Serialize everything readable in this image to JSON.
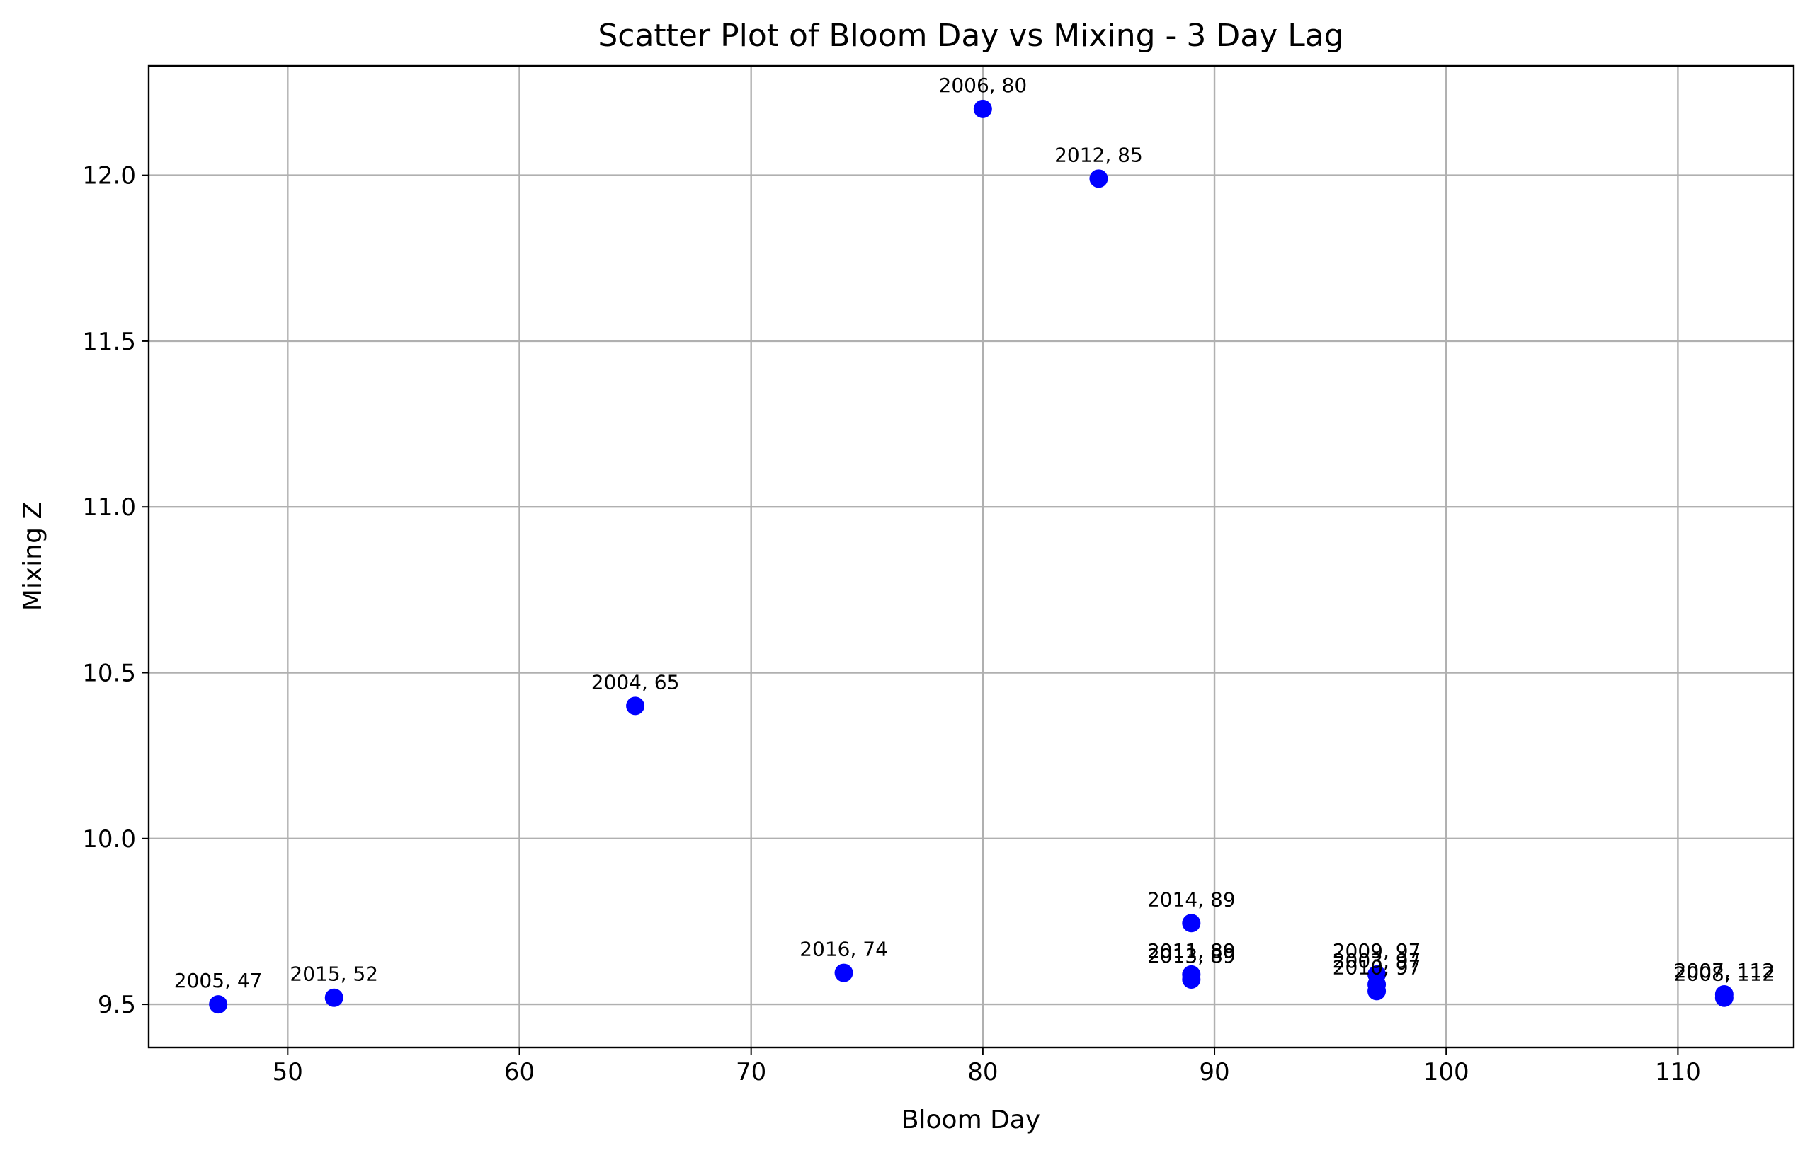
{
  "chart_data": {
    "type": "scatter",
    "title": "Scatter Plot of Bloom Day vs Mixing - 3 Day Lag",
    "xlabel": "Bloom Day",
    "ylabel": "Mixing Z",
    "xlim": [
      44,
      115
    ],
    "ylim": [
      9.37,
      12.33
    ],
    "xticks": [
      50,
      60,
      70,
      80,
      90,
      100,
      110
    ],
    "yticks": [
      9.5,
      10.0,
      10.5,
      11.0,
      11.5,
      12.0
    ],
    "ytick_labels": [
      "9.5",
      "10.0",
      "10.5",
      "11.0",
      "11.5",
      "12.0"
    ],
    "grid": true,
    "marker_color": "#0000ff",
    "points": [
      {
        "label": "2005, 47",
        "x": 47,
        "y": 9.5
      },
      {
        "label": "2015, 52",
        "x": 52,
        "y": 9.52
      },
      {
        "label": "2004, 65",
        "x": 65,
        "y": 10.4
      },
      {
        "label": "2016, 74",
        "x": 74,
        "y": 9.595
      },
      {
        "label": "2006, 80",
        "x": 80,
        "y": 12.2
      },
      {
        "label": "2012, 85",
        "x": 85,
        "y": 11.99
      },
      {
        "label": "2014, 89",
        "x": 89,
        "y": 9.745
      },
      {
        "label": "2011, 89",
        "x": 89,
        "y": 9.59
      },
      {
        "label": "2013, 89",
        "x": 89,
        "y": 9.575
      },
      {
        "label": "2009, 97",
        "x": 97,
        "y": 9.59
      },
      {
        "label": "2003, 97",
        "x": 97,
        "y": 9.56
      },
      {
        "label": "2010, 97",
        "x": 97,
        "y": 9.54
      },
      {
        "label": "2007, 112",
        "x": 112,
        "y": 9.53
      },
      {
        "label": "2008, 112",
        "x": 112,
        "y": 9.52
      }
    ]
  }
}
